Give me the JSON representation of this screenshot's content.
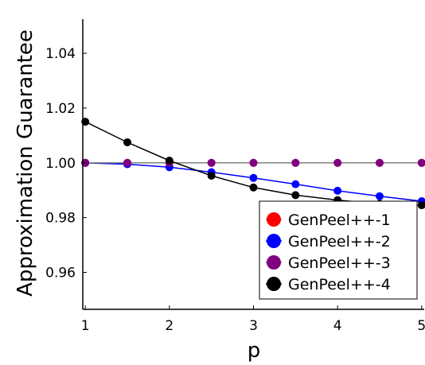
{
  "chart_data": {
    "type": "line",
    "title": "",
    "xlabel": "p",
    "ylabel": "Approximation Guarantee",
    "xlim": [
      0.97,
      5.03
    ],
    "ylim": [
      0.9465,
      1.0525
    ],
    "xticks": [
      1,
      2,
      3,
      4,
      5
    ],
    "xtick_labels": [
      "1",
      "2",
      "3",
      "4",
      "5"
    ],
    "yticks": [
      0.96,
      0.98,
      1.0,
      1.02,
      1.04
    ],
    "ytick_labels": [
      "0.96",
      "0.98",
      "1.00",
      "1.02",
      "1.04"
    ],
    "grid": false,
    "legend_position": "bottom-right",
    "x": [
      1,
      1.5,
      2,
      2.5,
      3,
      3.5,
      4,
      4.5,
      5
    ],
    "series": [
      {
        "name": "GenPeel++-1",
        "color": "#ff0000",
        "line_color": "#808080",
        "values": [
          1.0,
          1.0,
          1.0,
          1.0,
          1.0,
          1.0,
          1.0,
          1.0,
          1.0
        ]
      },
      {
        "name": "GenPeel++-2",
        "color": "#0000ff",
        "line_color": "#0000ff",
        "values": [
          1.0,
          0.9995,
          0.9984,
          0.9966,
          0.9945,
          0.9922,
          0.9898,
          0.9878,
          0.986
        ]
      },
      {
        "name": "GenPeel++-3",
        "color": "#800080",
        "line_color": "#808080",
        "values": [
          1.0,
          1.0,
          1.0,
          1.0,
          1.0,
          1.0,
          1.0,
          1.0,
          1.0
        ]
      },
      {
        "name": "GenPeel++-4",
        "color": "#000000",
        "line_color": "#000000",
        "values": [
          1.015,
          1.0075,
          1.0008,
          0.9953,
          0.991,
          0.9882,
          0.9864,
          0.985,
          0.9845
        ]
      }
    ]
  }
}
